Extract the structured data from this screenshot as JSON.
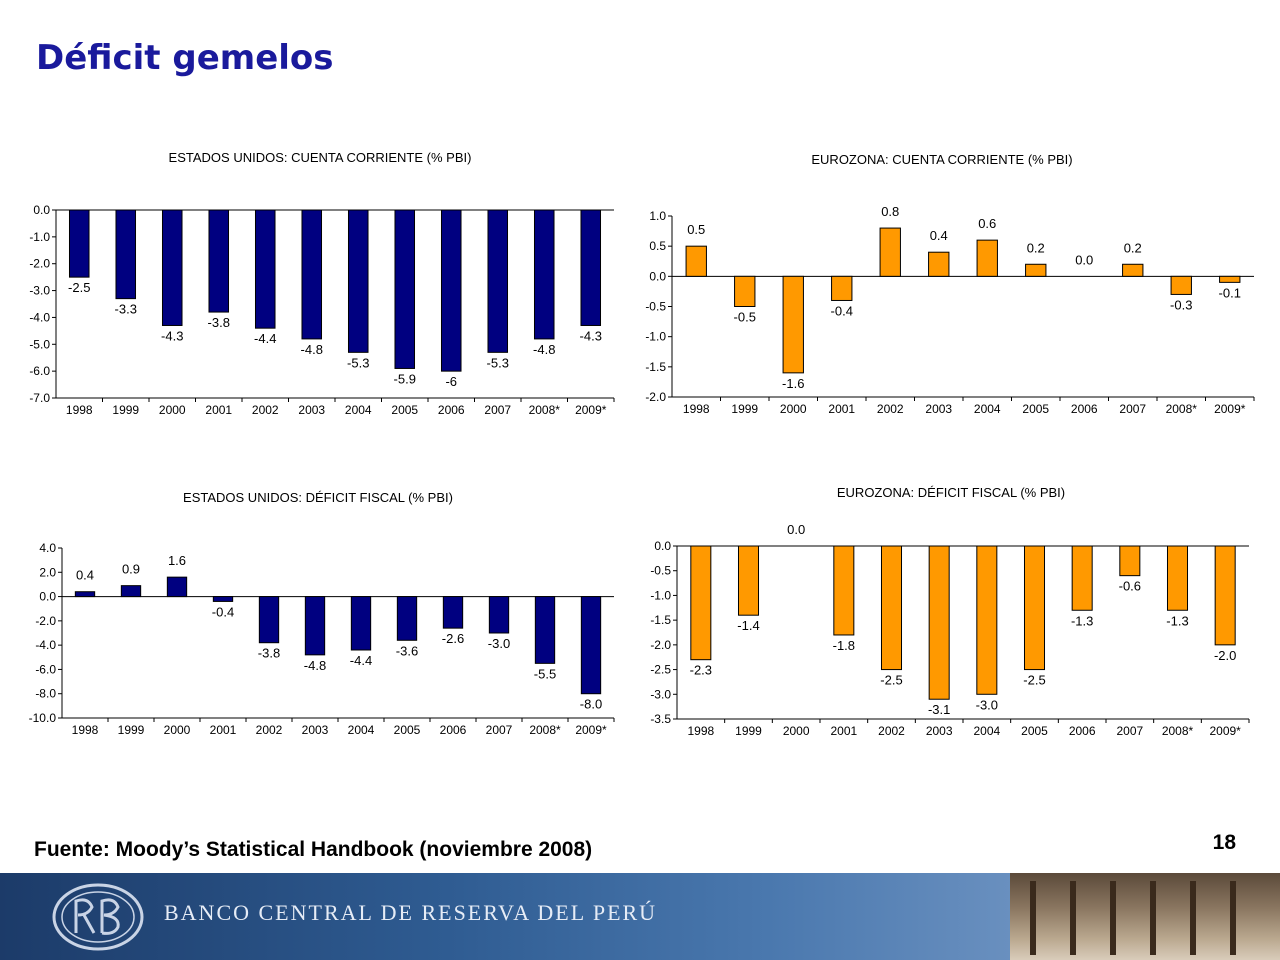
{
  "title": "Déficit gemelos",
  "source": "Fuente: Moody’s Statistical Handbook (noviembre 2008)",
  "page_number": "18",
  "footer": {
    "bank_name": "BANCO CENTRAL DE RESERVA DEL PERÚ",
    "logo": "bcrp-logo"
  },
  "colors": {
    "us": "#000080",
    "euro": "#ff9900",
    "title": "#1a1a9c"
  },
  "chart_data": [
    {
      "id": "us-cc",
      "type": "bar",
      "title": "ESTADOS UNIDOS: CUENTA CORRIENTE (% PBI)",
      "categories": [
        "1998",
        "1999",
        "2000",
        "2001",
        "2002",
        "2003",
        "2004",
        "2005",
        "2006",
        "2007",
        "2008*",
        "2009*"
      ],
      "values": [
        -2.5,
        -3.3,
        -4.3,
        -3.8,
        -4.4,
        -4.8,
        -5.3,
        -5.9,
        -6,
        -5.3,
        -4.8,
        -4.3
      ],
      "labels": [
        "-2.5",
        "-3.3",
        "-4.3",
        "-3.8",
        "-4.4",
        "-4.8",
        "-5.3",
        "-5.9",
        "-6",
        "-5.3",
        "-4.8",
        "-4.3"
      ],
      "yticks": [
        "0.0",
        "-1.0",
        "-2.0",
        "-3.0",
        "-4.0",
        "-5.0",
        "-6.0",
        "-7.0"
      ],
      "ylim": [
        -7,
        0
      ],
      "color": "#000080",
      "grid": false
    },
    {
      "id": "euro-cc",
      "type": "bar",
      "title": "EUROZONA: CUENTA CORRIENTE (% PBI)",
      "categories": [
        "1998",
        "1999",
        "2000",
        "2001",
        "2002",
        "2003",
        "2004",
        "2005",
        "2006",
        "2007",
        "2008*",
        "2009*"
      ],
      "values": [
        0.5,
        -0.5,
        -1.6,
        -0.4,
        0.8,
        0.4,
        0.6,
        0.2,
        0.0,
        0.2,
        -0.3,
        -0.1
      ],
      "labels": [
        "0.5",
        "-0.5",
        "-1.6",
        "-0.4",
        "0.8",
        "0.4",
        "0.6",
        "0.2",
        "0.0",
        "0.2",
        "-0.3",
        "-0.1"
      ],
      "yticks": [
        "1.0",
        "0.5",
        "0.0",
        "-0.5",
        "-1.0",
        "-1.5",
        "-2.0"
      ],
      "ylim": [
        -2,
        1
      ],
      "color": "#ff9900",
      "grid": false
    },
    {
      "id": "us-fiscal",
      "type": "bar",
      "title": "ESTADOS UNIDOS: DÉFICIT FISCAL (% PBI)",
      "categories": [
        "1998",
        "1999",
        "2000",
        "2001",
        "2002",
        "2003",
        "2004",
        "2005",
        "2006",
        "2007",
        "2008*",
        "2009*"
      ],
      "values": [
        0.4,
        0.9,
        1.6,
        -0.4,
        -3.8,
        -4.8,
        -4.4,
        -3.6,
        -2.6,
        -3.0,
        -5.5,
        -8.0
      ],
      "labels": [
        "0.4",
        "0.9",
        "1.6",
        "-0.4",
        "-3.8",
        "-4.8",
        "-4.4",
        "-3.6",
        "-2.6",
        "-3.0",
        "-5.5",
        "-8.0"
      ],
      "yticks": [
        "4.0",
        "2.0",
        "0.0",
        "-2.0",
        "-4.0",
        "-6.0",
        "-8.0",
        "-10.0"
      ],
      "ylim": [
        -10,
        4
      ],
      "color": "#000080",
      "grid": false
    },
    {
      "id": "euro-fiscal",
      "type": "bar",
      "title": "EUROZONA: DÉFICIT FISCAL (% PBI)",
      "categories": [
        "1998",
        "1999",
        "2000",
        "2001",
        "2002",
        "2003",
        "2004",
        "2005",
        "2006",
        "2007",
        "2008*",
        "2009*"
      ],
      "values": [
        -2.3,
        -1.4,
        0.0,
        -1.8,
        -2.5,
        -3.1,
        -3.0,
        -2.5,
        -1.3,
        -0.6,
        -1.3,
        -2.0
      ],
      "labels": [
        "-2.3",
        "-1.4",
        "0.0",
        "-1.8",
        "-2.5",
        "-3.1",
        "-3.0",
        "-2.5",
        "-1.3",
        "-0.6",
        "-1.3",
        "-2.0"
      ],
      "yticks": [
        "0.0",
        "-0.5",
        "-1.0",
        "-1.5",
        "-2.0",
        "-2.5",
        "-3.0",
        "-3.5"
      ],
      "ylim": [
        -3.5,
        0
      ],
      "color": "#ff9900",
      "grid": false
    }
  ]
}
